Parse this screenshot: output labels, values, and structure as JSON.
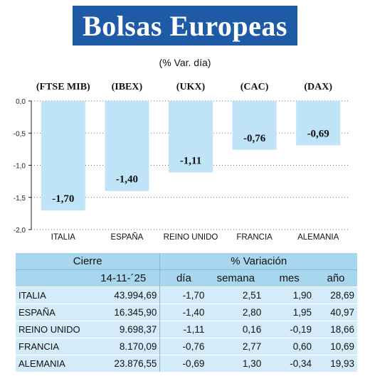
{
  "header": {
    "title": "Bolsas Europeas",
    "subtitle": "(% Var. día)"
  },
  "chart_data": {
    "type": "bar",
    "index_labels": [
      "(FTSE MIB)",
      "(IBEX)",
      "(UKX)",
      "(CAC)",
      "(DAX)"
    ],
    "categories": [
      "ITALIA",
      "ESPAÑA",
      "REINO UNIDO",
      "FRANCIA",
      "ALEMANIA"
    ],
    "values": [
      -1.7,
      -1.4,
      -1.11,
      -0.76,
      -0.69
    ],
    "value_labels": [
      "-1,70",
      "-1,40",
      "-1,11",
      "-0,76",
      "-0,69"
    ],
    "yticks": [
      0.0,
      -0.5,
      -1.0,
      -1.5,
      -2.0
    ],
    "ytick_labels": [
      "0,0",
      "-0,5",
      "-1,0",
      "-1,5",
      "-2,0"
    ],
    "ylim": [
      -2.0,
      0.0
    ],
    "grid": true,
    "bar_color": "#bfe4f7"
  },
  "table": {
    "header1": {
      "cierre": "Cierre",
      "variacion": "% Variación"
    },
    "header2": {
      "date": "14-11-´25",
      "dia": "día",
      "semana": "semana",
      "mes": "mes",
      "anio": "año"
    },
    "rows": [
      {
        "pais": "ITALIA",
        "cierre": "43.994,69",
        "dia": "-1,70",
        "semana": "2,51",
        "mes": "1,90",
        "anio": "28,69"
      },
      {
        "pais": "ESPAÑA",
        "cierre": "16.345,90",
        "dia": "-1,40",
        "semana": "2,80",
        "mes": "1,95",
        "anio": "40,97"
      },
      {
        "pais": "REINO UNIDO",
        "cierre": "9.698,37",
        "dia": "-1,11",
        "semana": "0,16",
        "mes": "-0,19",
        "anio": "18,66"
      },
      {
        "pais": "FRANCIA",
        "cierre": "8.170,09",
        "dia": "-0,76",
        "semana": "2,77",
        "mes": "0,60",
        "anio": "10,69"
      },
      {
        "pais": "ALEMANIA",
        "cierre": "23.876,55",
        "dia": "-0,69",
        "semana": "1,30",
        "mes": "-0,34",
        "anio": "19,93"
      }
    ]
  },
  "colors": {
    "banner": "#1f5aa6",
    "bar": "#bfe4f7",
    "table_header": "#a9d6ef",
    "table_row": "#d4ecf9"
  }
}
